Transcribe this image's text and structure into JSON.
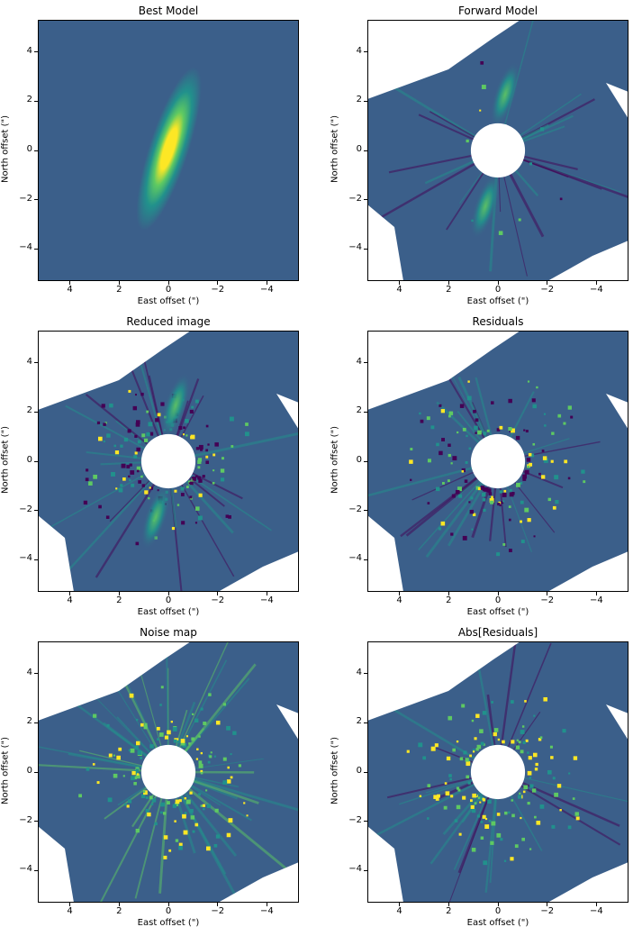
{
  "chart_data": [
    {
      "type": "heatmap",
      "title": "Best Model",
      "xlabel": "East offset (\")",
      "ylabel": "North offset (\")",
      "xlim": [
        5.3,
        -5.3
      ],
      "ylim": [
        -5.3,
        5.3
      ],
      "xticks": [
        4,
        2,
        0,
        -2,
        -4
      ],
      "xtick_labels": [
        "4",
        "2",
        "0",
        "−2",
        "−4"
      ],
      "yticks": [
        4,
        2,
        0,
        -2,
        -4
      ],
      "ytick_labels": [
        "4",
        "2",
        "0",
        "−2",
        "−4"
      ],
      "colormap": "viridis",
      "content": "elongated bright disk model oriented roughly north–south, brightest near center",
      "masked_center_radius": 0,
      "field_of_view": "full"
    },
    {
      "type": "heatmap",
      "title": "Forward Model",
      "xlabel": "East offset (\")",
      "ylabel": "North offset (\")",
      "xlim": [
        5.3,
        -5.3
      ],
      "ylim": [
        -5.3,
        5.3
      ],
      "xticks": [
        4,
        2,
        0,
        -2,
        -4
      ],
      "xtick_labels": [
        "4",
        "2",
        "0",
        "−2",
        "−4"
      ],
      "yticks": [
        4,
        2,
        0,
        -2,
        -4
      ],
      "ytick_labels": [
        "4",
        "2",
        "0",
        "−2",
        "−4"
      ],
      "colormap": "viridis",
      "content": "forward-modelled disk with self-subtraction, faint lobes north and south",
      "masked_center_radius": 1.1,
      "field_of_view": "rotated octagonal footprint"
    },
    {
      "type": "heatmap",
      "title": "Reduced image",
      "xlabel": "East offset (\")",
      "ylabel": "North offset (\")",
      "xlim": [
        5.3,
        -5.3
      ],
      "ylim": [
        -5.3,
        5.3
      ],
      "xticks": [
        4,
        2,
        0,
        -2,
        -4
      ],
      "xtick_labels": [
        "4",
        "2",
        "0",
        "−2",
        "−4"
      ],
      "yticks": [
        4,
        2,
        0,
        -2,
        -4
      ],
      "ytick_labels": [
        "4",
        "2",
        "0",
        "−2",
        "−4"
      ],
      "colormap": "viridis",
      "content": "noisy reduced image with bright speckles around the mask",
      "masked_center_radius": 1.1,
      "field_of_view": "rotated octagonal footprint"
    },
    {
      "type": "heatmap",
      "title": "Residuals",
      "xlabel": "East offset (\")",
      "ylabel": "North offset (\")",
      "xlim": [
        5.3,
        -5.3
      ],
      "ylim": [
        -5.3,
        5.3
      ],
      "xticks": [
        4,
        2,
        0,
        -2,
        -4
      ],
      "xtick_labels": [
        "4",
        "2",
        "0",
        "−2",
        "−4"
      ],
      "yticks": [
        4,
        2,
        0,
        -2,
        -4
      ],
      "ytick_labels": [
        "4",
        "2",
        "0",
        "−2",
        "−4"
      ],
      "colormap": "viridis",
      "content": "residual speckle noise after model subtraction",
      "masked_center_radius": 1.1,
      "field_of_view": "rotated octagonal footprint"
    },
    {
      "type": "heatmap",
      "title": "Noise map",
      "xlabel": "East offset (\")",
      "ylabel": "North offset (\")",
      "xlim": [
        5.3,
        -5.3
      ],
      "ylim": [
        -5.3,
        5.3
      ],
      "xticks": [
        4,
        2,
        0,
        -2,
        -4
      ],
      "xtick_labels": [
        "4",
        "2",
        "0",
        "−2",
        "−4"
      ],
      "yticks": [
        4,
        2,
        0,
        -2,
        -4
      ],
      "ytick_labels": [
        "4",
        "2",
        "0",
        "−2",
        "−4"
      ],
      "colormap": "viridis",
      "content": "radial noise map, bright ring around mask and radial streaks",
      "masked_center_radius": 1.1,
      "field_of_view": "rotated octagonal footprint"
    },
    {
      "type": "heatmap",
      "title": "Abs[Residuals]",
      "xlabel": "East offset (\")",
      "ylabel": "North offset (\")",
      "xlim": [
        5.3,
        -5.3
      ],
      "ylim": [
        -5.3,
        5.3
      ],
      "xticks": [
        4,
        2,
        0,
        -2,
        -4
      ],
      "xtick_labels": [
        "4",
        "2",
        "0",
        "−2",
        "−4"
      ],
      "yticks": [
        4,
        2,
        0,
        -2,
        -4
      ],
      "ytick_labels": [
        "4",
        "2",
        "0",
        "−2",
        "−4"
      ],
      "colormap": "viridis",
      "content": "absolute residuals, bright speckles near mask",
      "masked_center_radius": 1.1,
      "field_of_view": "rotated octagonal footprint"
    }
  ],
  "colors": {
    "background": "#3b5f8a",
    "dark": "#440154",
    "mid": "#31688e",
    "teal": "#21918c",
    "green": "#5ec962",
    "bright": "#fde725",
    "mask": "#ffffff"
  }
}
